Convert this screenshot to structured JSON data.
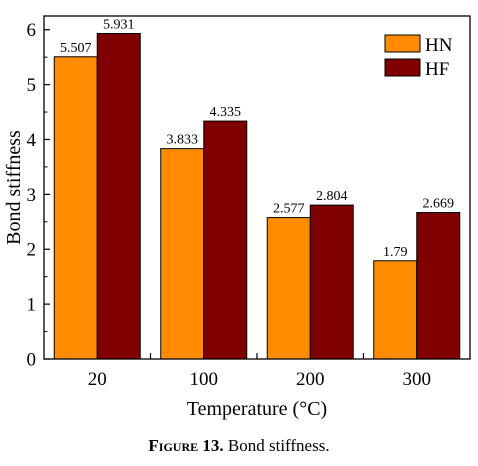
{
  "chart_data": {
    "type": "bar",
    "categories": [
      "20",
      "100",
      "200",
      "300"
    ],
    "series": [
      {
        "name": "HN",
        "values": [
          5.507,
          3.833,
          2.577,
          1.79
        ],
        "labels": [
          "5.507",
          "3.833",
          "2.577",
          "1.79"
        ],
        "color": "#FF8C00"
      },
      {
        "name": "HF",
        "values": [
          5.931,
          4.335,
          2.804,
          2.669
        ],
        "labels": [
          "5.931",
          "4.335",
          "2.804",
          "2.669"
        ],
        "color": "#800000"
      }
    ],
    "xlabel": "Temperature (°C)",
    "ylabel": "Bond stiffness",
    "ylim": [
      0,
      6.25
    ],
    "yticks": [
      "0",
      "1",
      "2",
      "3",
      "4",
      "5",
      "6"
    ],
    "legend_position": "top-right",
    "grid": false
  },
  "caption": {
    "label": "Figure",
    "number": "13.",
    "text": "Bond stiffness."
  }
}
